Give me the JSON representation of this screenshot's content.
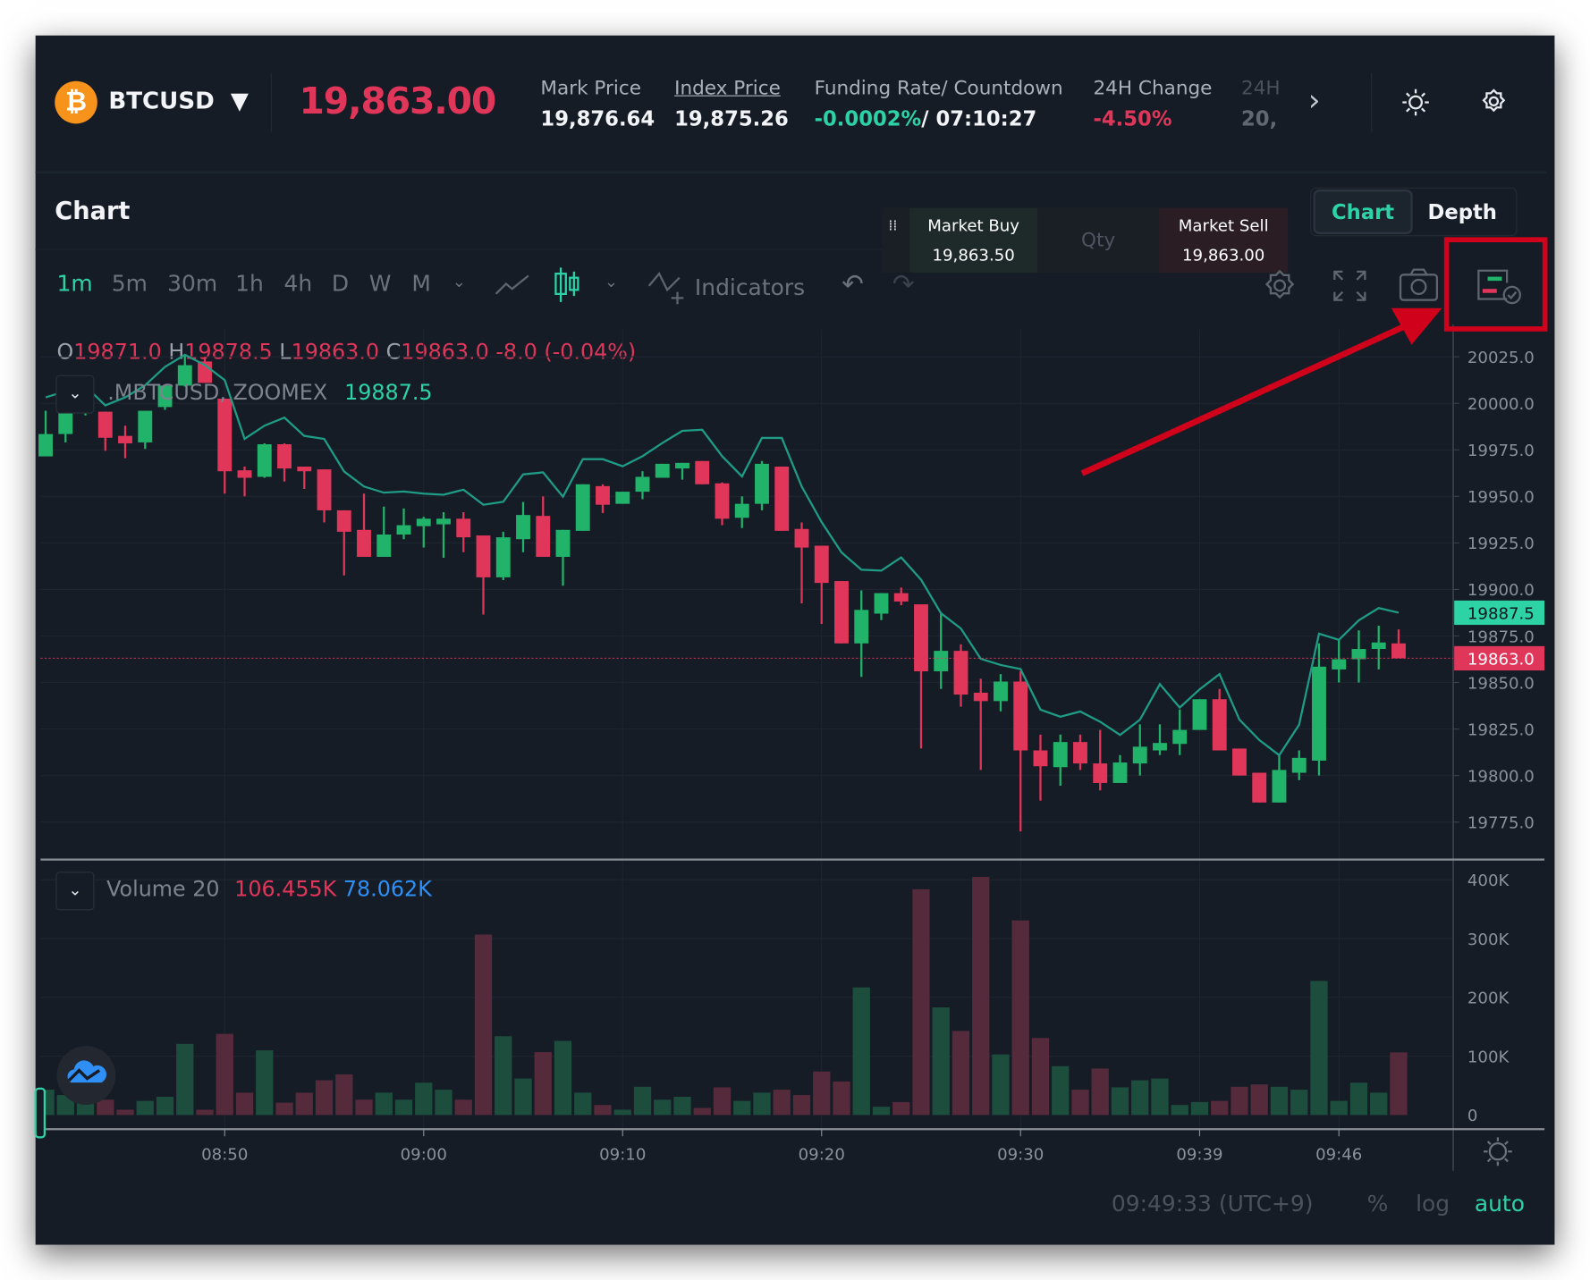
{
  "header": {
    "symbol": "BTCUSD",
    "last_price": "19,863.00",
    "stats": [
      {
        "label": "Mark Price",
        "value": "19,876.64"
      },
      {
        "label": "Index Price",
        "value": "19,875.26"
      },
      {
        "label": "Funding Rate/ Countdown",
        "value_rate": "-0.0002%",
        "value_countdown": "/ 07:10:27"
      },
      {
        "label": "24H Change",
        "value": "-4.50%"
      },
      {
        "label": "24H",
        "value": "20,"
      }
    ]
  },
  "panel": {
    "title": "Chart",
    "view_tabs": [
      {
        "label": "Chart",
        "active": true
      },
      {
        "label": "Depth",
        "active": false
      }
    ],
    "trade": {
      "buy_label": "Market Buy",
      "buy_price": "19,863.50",
      "qty_placeholder": "Qty",
      "sell_label": "Market Sell",
      "sell_price": "19,863.00"
    }
  },
  "toolbar": {
    "intervals": [
      "1m",
      "5m",
      "30m",
      "1h",
      "4h",
      "D",
      "W",
      "M"
    ],
    "active_interval": "1m",
    "indicators_label": "Indicators"
  },
  "legend": {
    "ohlc": {
      "o_label": "O",
      "o": "19871.0",
      "h_label": "H",
      "h": "19878.5",
      "l_label": "L",
      "l": "19863.0",
      "c_label": "C",
      "c": "19863.0",
      "change": "-8.0 (-0.04%)"
    },
    "ma_name": ".MBTCUSD, ZOOMEX",
    "ma_value": "19887.5",
    "volume_name": "Volume 20",
    "volume_value": "106.455K",
    "volume_ma": "78.062K"
  },
  "footer": {
    "time": "09:49:33 (UTC+9)",
    "percent": "%",
    "log": "log",
    "auto": "auto"
  },
  "colors": {
    "up": "#22b36b",
    "down": "#e0365a",
    "accent": "#2ed3a5",
    "ma_line": "#1f9c86",
    "volume_ma": "#2f8ff5",
    "highlight": "#d0021b",
    "bitcoin": "#f7931a"
  },
  "chart_data": {
    "type": "candlestick",
    "price_axis": {
      "ticks": [
        20025.0,
        20000.0,
        19975.0,
        19950.0,
        19925.0,
        19900.0,
        19875.0,
        19850.0,
        19825.0,
        19800.0,
        19775.0
      ],
      "range": [
        19760,
        20040
      ]
    },
    "current_price_tag": "19863.0",
    "ma_price_tag": "19887.5",
    "time_ticks": [
      "08:50",
      "09:00",
      "09:10",
      "09:20",
      "09:30",
      "09:39",
      "09:46"
    ],
    "volume_axis": {
      "ticks": [
        "400K",
        "300K",
        "200K",
        "100K",
        "0"
      ],
      "tick_values_k": [
        400,
        300,
        200,
        100,
        0
      ]
    },
    "candles": [
      [
        "08:41",
        19971.5,
        19996,
        19971.5,
        19983.5
      ],
      [
        "08:42",
        19983.5,
        19995.5,
        19979,
        19995.5
      ],
      [
        "08:43",
        19996.5,
        20004.5,
        19993.5,
        19999
      ],
      [
        "08:44",
        19995.5,
        19995.5,
        19974.5,
        19981.5
      ],
      [
        "08:45",
        19982.5,
        19988,
        19970.5,
        19978.5
      ],
      [
        "08:46",
        19979,
        19996,
        19975.5,
        19996
      ],
      [
        "08:47",
        19998,
        20010,
        19996.5,
        20009.5
      ],
      [
        "08:48",
        20009.5,
        20026,
        20009,
        20020.5
      ],
      [
        "08:49",
        20022.5,
        20025,
        20011,
        20011
      ],
      [
        "08:50",
        20002.5,
        20002.5,
        19951.5,
        19963.5
      ],
      [
        "08:51",
        19964,
        19966,
        19950,
        19960
      ],
      [
        "08:52",
        19960.5,
        19978.5,
        19960,
        19978
      ],
      [
        "08:53",
        19978,
        19978.5,
        19958,
        19965
      ],
      [
        "08:54",
        19966,
        19966,
        19954,
        19963.5
      ],
      [
        "08:55",
        19964.5,
        19964.5,
        19936,
        19942.5
      ],
      [
        "08:56",
        19942.5,
        19942.5,
        19907.5,
        19931
      ],
      [
        "08:57",
        19932,
        19951.5,
        19917.5,
        19917.5
      ],
      [
        "08:58",
        19917.5,
        19944.5,
        19917.5,
        19929.5
      ],
      [
        "08:59",
        19929.5,
        19943.5,
        19927,
        19934.5
      ],
      [
        "09:00",
        19934,
        19939,
        19922.5,
        19938
      ],
      [
        "09:01",
        19935,
        19941.5,
        19917,
        19938
      ],
      [
        "09:02",
        19938,
        19941.5,
        19920,
        19928
      ],
      [
        "09:03",
        19929,
        19929,
        19886.5,
        19906.5
      ],
      [
        "09:04",
        19906.5,
        19931,
        19905,
        19928
      ],
      [
        "09:05",
        19927,
        19947,
        19920,
        19940
      ],
      [
        "09:06",
        19939.5,
        19950,
        19917.5,
        19917.5
      ],
      [
        "09:07",
        19917.5,
        19932,
        19902,
        19932
      ],
      [
        "09:08",
        19931.5,
        19956.5,
        19931.5,
        19956.5
      ],
      [
        "09:09",
        19955.5,
        19956.5,
        19941,
        19945.5
      ],
      [
        "09:10",
        19946,
        19952.5,
        19946,
        19952.5
      ],
      [
        "09:11",
        19952.5,
        19963.5,
        19948.5,
        19960.5
      ],
      [
        "09:12",
        19960,
        19967.5,
        19960,
        19967.5
      ],
      [
        "09:13",
        19965,
        19968,
        19959,
        19968
      ],
      [
        "09:14",
        19969,
        19969,
        19956.5,
        19956.5
      ],
      [
        "09:15",
        19957,
        19957.5,
        19934.5,
        19938
      ],
      [
        "09:16",
        19938.5,
        19950,
        19933,
        19946
      ],
      [
        "09:17",
        19946,
        19969,
        19942.5,
        19967.5
      ],
      [
        "09:18",
        19966,
        19966,
        19931.5,
        19931.5
      ],
      [
        "09:19",
        19932.5,
        19936,
        19892.5,
        19922.5
      ],
      [
        "09:20",
        19923.5,
        19923.5,
        19881.5,
        19903.5
      ],
      [
        "09:21",
        19904.5,
        19904.5,
        19871,
        19871
      ],
      [
        "09:22",
        19871,
        19899.5,
        19853,
        19889
      ],
      [
        "09:23",
        19887,
        19898,
        19883.5,
        19898
      ],
      [
        "09:24",
        19898,
        19901,
        19891.5,
        19893.5
      ],
      [
        "09:25",
        19892,
        19892,
        19814.5,
        19856
      ],
      [
        "09:26",
        19856,
        19887,
        19846.5,
        19867
      ],
      [
        "09:27",
        19867,
        19870.5,
        19837,
        19843.5
      ],
      [
        "09:28",
        19844.5,
        19852,
        19803,
        19840
      ],
      [
        "09:29",
        19840,
        19854.5,
        19834.5,
        19850.5
      ],
      [
        "09:30",
        19850.5,
        19856,
        19770,
        19813.5
      ],
      [
        "09:31",
        19813.5,
        19822,
        19786.5,
        19805
      ],
      [
        "09:32",
        19804.5,
        19822,
        19794.5,
        19818
      ],
      [
        "09:33",
        19818,
        19822,
        19803,
        19806.5
      ],
      [
        "09:34",
        19806.5,
        19824.5,
        19792,
        19796
      ],
      [
        "09:35",
        19796,
        19811,
        19796,
        19807
      ],
      [
        "09:36",
        19806.5,
        19827.5,
        19800,
        19815.5
      ],
      [
        "09:37",
        19813.5,
        19827.5,
        19811,
        19817.5
      ],
      [
        "09:38",
        19817,
        19835.5,
        19811,
        19824.5
      ],
      [
        "09:39",
        19824.5,
        19841,
        19824.5,
        19841
      ],
      [
        "09:40",
        19841,
        19846.5,
        19813.5,
        19813.5
      ],
      [
        "09:41",
        19814.5,
        19814.5,
        19800,
        19800
      ],
      [
        "09:42",
        19801.5,
        19801.5,
        19785.5,
        19785.5
      ],
      [
        "09:43",
        19785.5,
        19811,
        19785.5,
        19803
      ],
      [
        "09:44",
        19801.5,
        19813.5,
        19797.5,
        19809.5
      ],
      [
        "09:45",
        19808,
        19871,
        19800,
        19858.5
      ],
      [
        "09:46",
        19857,
        19873.5,
        19850,
        19862.5
      ],
      [
        "09:47",
        19862.5,
        19878,
        19850,
        19868
      ],
      [
        "09:48",
        19868,
        19880.5,
        19857,
        19871.5
      ],
      [
        "09:49",
        19871.0,
        19878.5,
        19863.0,
        19863.0
      ]
    ],
    "ma": [
      20003.2,
      20006.5,
      20009.2,
      19998.9,
      20003.2,
      20009.7,
      20019.6,
      20026.1,
      20020.6,
      20012.5,
      19980.9,
      19988.0,
      19992.3,
      19982.5,
      19980.9,
      19963.4,
      19955.3,
      19952.0,
      19952.6,
      19951.5,
      19950.9,
      19953.6,
      19945.5,
      19947.1,
      19961.8,
      19962.9,
      19949.8,
      19970.0,
      19970.0,
      19966.2,
      19971.6,
      19978.7,
      19985.2,
      19985.8,
      19971.6,
      19960.7,
      19981.4,
      19981.4,
      19955.3,
      19936.2,
      19919.9,
      19910.6,
      19910.1,
      19917.2,
      19905.2,
      19887.2,
      19879.0,
      19862.7,
      19859.4,
      19857.2,
      19835.4,
      19831.6,
      19834.4,
      19828.9,
      19821.8,
      19830.0,
      19849.1,
      19836.5,
      19846.3,
      19854.5,
      19830.0,
      19819.1,
      19810.9,
      19827.3,
      19876.2,
      19872.9,
      19883.4,
      19890.0,
      19887.5
    ],
    "volume_k": [
      43,
      34,
      21,
      26,
      9,
      24,
      31,
      121,
      9,
      138,
      38,
      110,
      21,
      38,
      59,
      69,
      26,
      38,
      26,
      55,
      43,
      26,
      307,
      134,
      62,
      107,
      126,
      38,
      17,
      9,
      48,
      26,
      31,
      12,
      47,
      24,
      38,
      43,
      34,
      74,
      57,
      217,
      14,
      22,
      384,
      183,
      143,
      405,
      103,
      331,
      131,
      83,
      43,
      79,
      47,
      59,
      62,
      17,
      22,
      24,
      48,
      52,
      48,
      43,
      228,
      24,
      55,
      38,
      106.455
    ]
  }
}
